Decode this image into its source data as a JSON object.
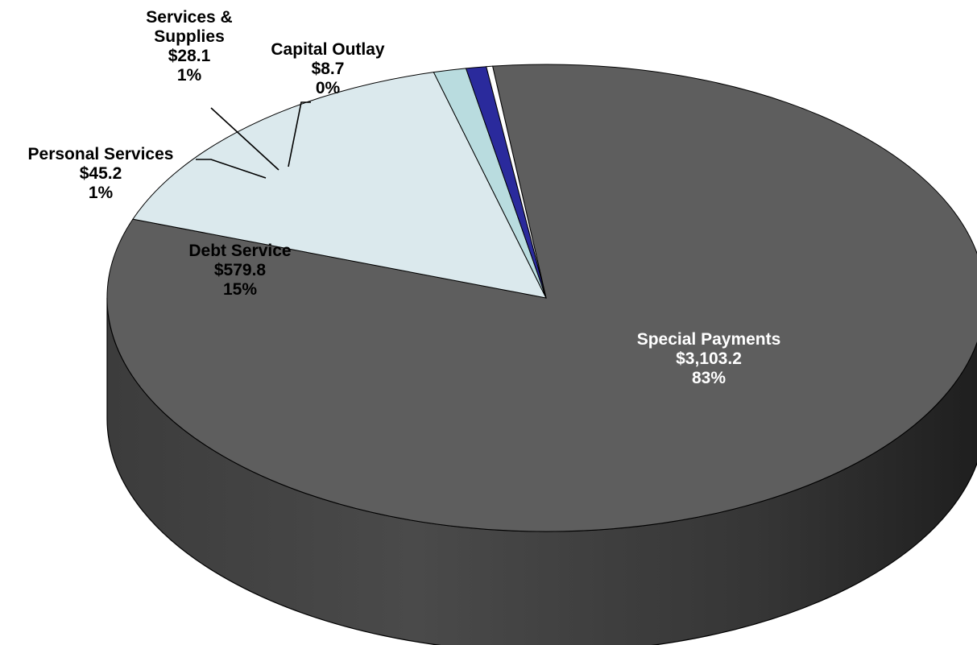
{
  "chart_data": {
    "type": "pie",
    "title": "",
    "style": "3d-pie",
    "slices": [
      {
        "name": "Special Payments",
        "value": 3103.2,
        "value_label": "$3,103.2",
        "percent": 83,
        "percent_label": "83%",
        "color": "#5e5e5e",
        "side_color": "#3a3a3a"
      },
      {
        "name": "Debt Service",
        "value": 579.8,
        "value_label": "$579.8",
        "percent": 15,
        "percent_label": "15%",
        "color": "#dbe9ed",
        "side_color": "#b7c9ce"
      },
      {
        "name": "Personal Services",
        "value": 45.2,
        "value_label": "$45.2",
        "percent": 1,
        "percent_label": "1%",
        "color": "#b9dcdf",
        "side_color": "#93b6b9"
      },
      {
        "name": "Services & Supplies",
        "value": 28.1,
        "value_label": "$28.1",
        "percent": 1,
        "percent_label": "1%",
        "color": "#2a2a9c",
        "side_color": "#1a1a6e"
      },
      {
        "name": "Capital Outlay",
        "value": 8.7,
        "value_label": "$8.7",
        "percent": 0,
        "percent_label": "0%",
        "color": "#ffffff",
        "side_color": "#dddddd"
      }
    ]
  }
}
